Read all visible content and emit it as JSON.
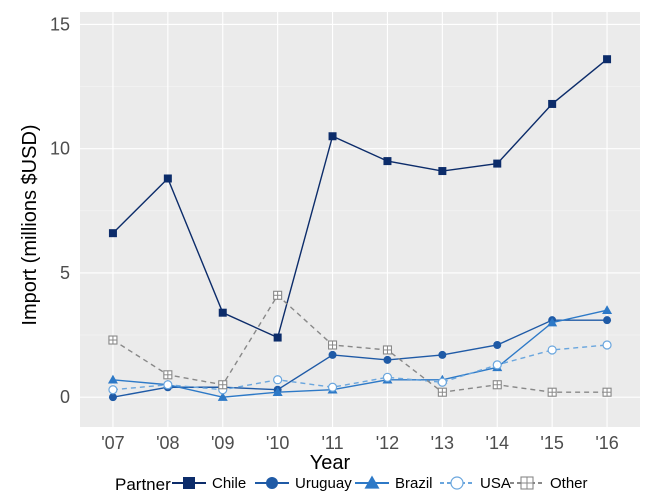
{
  "chart_data": {
    "type": "line",
    "xlabel": "Year",
    "ylabel": "Import (millions $USD)",
    "x": [
      "'07",
      "'08",
      "'09",
      "'10",
      "'11",
      "'12",
      "'13",
      "'14",
      "'15",
      "'16"
    ],
    "ylim": [
      -1.2,
      15.5
    ],
    "yticks": [
      0,
      5,
      10,
      15
    ],
    "grid": true,
    "legend_title": "Partner",
    "legend_position": "bottom",
    "series": [
      {
        "name": "Chile",
        "color": "#0c2c6a",
        "marker": "square-filled",
        "dash": "solid",
        "values": [
          6.6,
          8.8,
          3.4,
          2.4,
          10.5,
          9.5,
          9.1,
          9.4,
          11.8,
          13.6
        ]
      },
      {
        "name": "Uruguay",
        "color": "#1f5aa6",
        "marker": "circle-filled",
        "dash": "solid",
        "values": [
          0.0,
          0.4,
          0.4,
          0.3,
          1.7,
          1.5,
          1.7,
          2.1,
          3.1,
          3.1
        ]
      },
      {
        "name": "Brazil",
        "color": "#2d79c7",
        "marker": "triangle-filled",
        "dash": "solid",
        "values": [
          0.7,
          0.5,
          0.0,
          0.2,
          0.3,
          0.7,
          0.7,
          1.2,
          3.0,
          3.5
        ]
      },
      {
        "name": "USA",
        "color": "#6aa6de",
        "marker": "circle-open",
        "dash": "dashed",
        "values": [
          0.3,
          0.5,
          0.3,
          0.7,
          0.4,
          0.8,
          0.6,
          1.3,
          1.9,
          2.1
        ]
      },
      {
        "name": "Other",
        "color": "#888888",
        "marker": "square-cross",
        "dash": "dashed",
        "values": [
          2.3,
          0.9,
          0.5,
          4.1,
          2.1,
          1.9,
          0.2,
          0.5,
          0.2,
          0.2
        ]
      }
    ]
  }
}
